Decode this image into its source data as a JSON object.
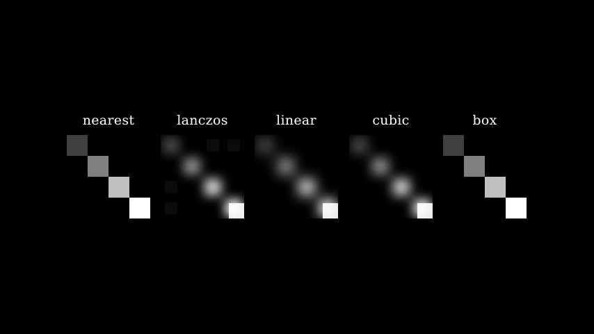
{
  "panels": [
    {
      "title": "nearest",
      "method": "nearest"
    },
    {
      "title": "lanczos",
      "method": "lanczos"
    },
    {
      "title": "linear",
      "method": "linear"
    },
    {
      "title": "cubic",
      "method": "cubic"
    },
    {
      "title": "box",
      "method": "box"
    }
  ],
  "source_grid": {
    "rows": 4,
    "cols": 4,
    "diagonal_gray_levels": [
      0.25,
      0.5,
      0.75,
      1.0
    ]
  },
  "colors": {
    "background": "#000000",
    "title_text": "#ffffff"
  }
}
